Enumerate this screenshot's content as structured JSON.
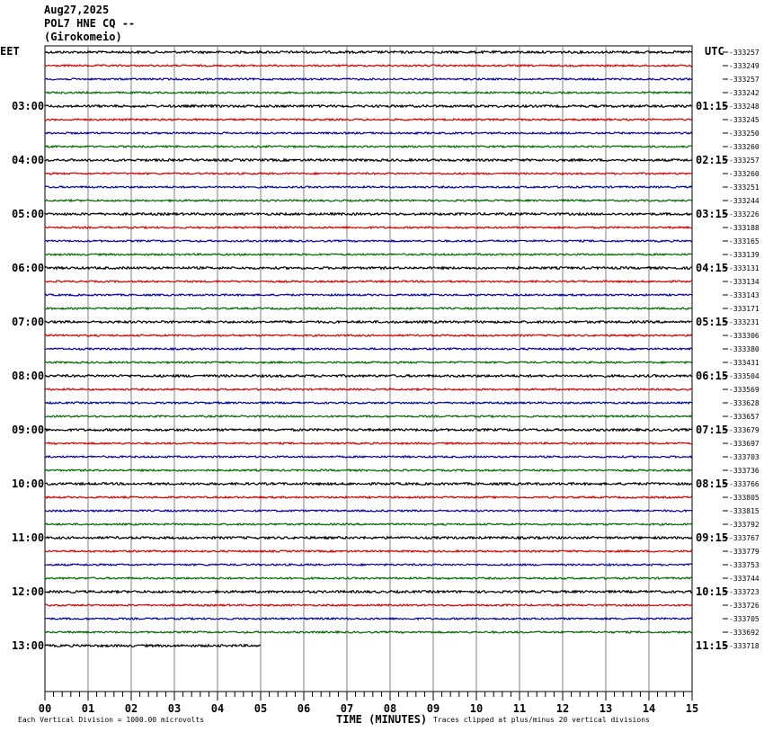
{
  "header": {
    "date": "Aug27,2025",
    "station": "POL7 HNE CQ --",
    "location": "(Girokomeio)"
  },
  "timezones": {
    "left": "EET",
    "right": "UTC"
  },
  "footer": {
    "scale": "Each Vertical Division = 1000.00 microvolts",
    "axis_title": "TIME (MINUTES)",
    "clip_note": "Traces clipped at plus/minus 20 vertical divisions"
  },
  "chart_data": {
    "type": "line",
    "title": "",
    "xlabel": "TIME (MINUTES)",
    "xlim": [
      0,
      15
    ],
    "x_ticks": [
      "00",
      "01",
      "02",
      "03",
      "04",
      "05",
      "06",
      "07",
      "08",
      "09",
      "10",
      "11",
      "12",
      "13",
      "14",
      "15"
    ],
    "left_hour_labels": [
      "03:00",
      "04:00",
      "05:00",
      "06:00",
      "07:00",
      "08:00",
      "09:00",
      "10:00",
      "11:00",
      "12:00",
      "13:00"
    ],
    "right_hour_labels": [
      "01:15",
      "02:15",
      "03:15",
      "04:15",
      "05:15",
      "06:15",
      "07:15",
      "08:15",
      "09:15",
      "10:15",
      "11:15"
    ],
    "trace_colors": [
      "#000000",
      "#cc0000",
      "#0000aa",
      "#006600"
    ],
    "trace_offsets": [
      -333257,
      -333249,
      -333257,
      -333242,
      -333248,
      -333245,
      -333250,
      -333260,
      -333257,
      -333260,
      -333251,
      -333244,
      -333226,
      -333188,
      -333165,
      -333139,
      -333131,
      -333134,
      -333143,
      -333171,
      -333231,
      -333306,
      -333380,
      -333431,
      -333504,
      -333569,
      -333628,
      -333657,
      -333679,
      -333697,
      -333703,
      -333736,
      -333766,
      -333805,
      -333815,
      -333792,
      -333767,
      -333779,
      -333753,
      -333744,
      -333723,
      -333726,
      -333705,
      -333692,
      -333718
    ],
    "last_trace_minutes": 5,
    "grid": true
  }
}
